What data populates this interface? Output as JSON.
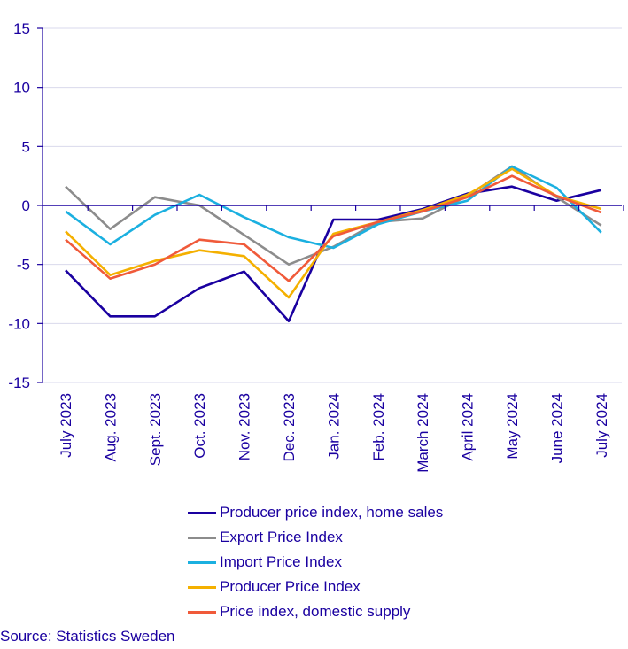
{
  "chart_data": {
    "type": "line",
    "title": "",
    "xlabel": "",
    "ylabel": "",
    "categories": [
      "July 2023",
      "Aug. 2023",
      "Sept. 2023",
      "Oct. 2023",
      "Nov. 2023",
      "Dec. 2023",
      "Jan. 2024",
      "Feb. 2024",
      "March 2024",
      "April 2024",
      "May 2024",
      "June 2024",
      "July 2024"
    ],
    "ylim": [
      -15,
      15
    ],
    "yticks": [
      15,
      10,
      5,
      0,
      -5,
      -10,
      -15
    ],
    "ytick_labels": [
      "15",
      "10",
      "5",
      "0",
      "-5",
      "-10",
      "-15"
    ],
    "grid": true,
    "legend_position": "bottom",
    "series": [
      {
        "name": "Producer price index, home sales",
        "color": "#1a00a0",
        "values": [
          -5.5,
          -9.4,
          -9.4,
          -7.0,
          -5.6,
          -9.8,
          -1.2,
          -1.2,
          -0.3,
          1.0,
          1.6,
          0.4,
          1.3
        ]
      },
      {
        "name": "Export Price Index",
        "color": "#8c8c8c",
        "values": [
          1.6,
          -2.0,
          0.7,
          0.0,
          -2.5,
          -5.0,
          -3.5,
          -1.4,
          -1.1,
          0.8,
          3.3,
          0.7,
          -1.7
        ]
      },
      {
        "name": "Import Price Index",
        "color": "#1bb0e0",
        "values": [
          -0.5,
          -3.3,
          -0.8,
          0.9,
          -1.0,
          -2.7,
          -3.6,
          -1.6,
          -0.5,
          0.4,
          3.3,
          1.5,
          -2.3
        ]
      },
      {
        "name": "Producer Price Index",
        "color": "#f4b000",
        "values": [
          -2.2,
          -5.9,
          -4.7,
          -3.8,
          -4.3,
          -7.8,
          -2.4,
          -1.4,
          -0.4,
          0.9,
          3.1,
          0.8,
          -0.3
        ]
      },
      {
        "name": "Price index, domestic supply",
        "color": "#f05a3a",
        "values": [
          -2.9,
          -6.2,
          -5.0,
          -2.9,
          -3.3,
          -6.4,
          -2.6,
          -1.4,
          -0.5,
          0.7,
          2.5,
          0.8,
          -0.6
        ]
      }
    ]
  },
  "source": "Source: Statistics Sweden"
}
